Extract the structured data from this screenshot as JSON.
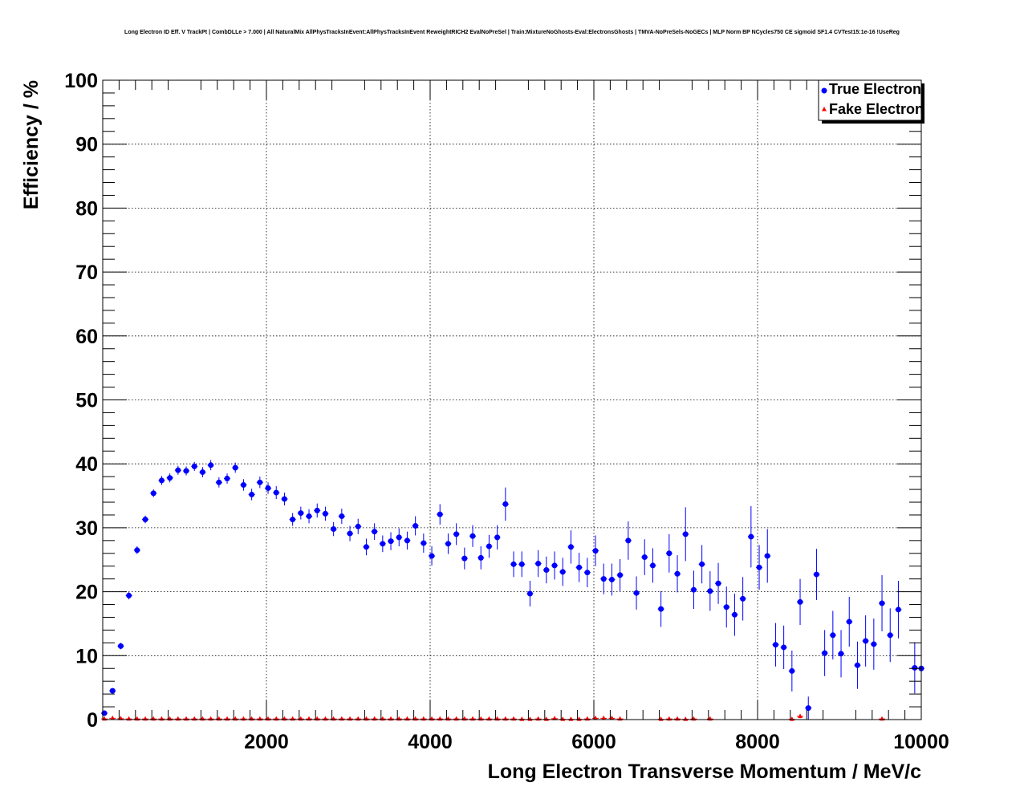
{
  "chart_data": {
    "type": "scatter",
    "title": "Long Electron ID Eff. V TrackPt | CombDLLe > 7.000 | All NaturalMix AllPhysTracksInEvent:AllPhysTracksInEvent ReweightRICH2 EvalNoPreSel | Train:MixtureNoGhosts-Eval:ElectronsGhosts | TMVA-NoPreSels-NoGECs | MLP Norm BP NCycles750 CE sigmoid SF1.4 CVTest15:1e-16 !UseReg",
    "xlabel": "Long Electron Transverse Momentum / MeV/c",
    "ylabel": "Efficiency / %",
    "xlim": [
      0,
      10000
    ],
    "ylim": [
      0,
      100
    ],
    "xticks": [
      "2000",
      "4000",
      "6000",
      "8000",
      "10000"
    ],
    "yticks": [
      "0",
      "10",
      "20",
      "30",
      "40",
      "50",
      "60",
      "70",
      "80",
      "90",
      "100"
    ],
    "grid": true,
    "legend": "top-right",
    "series": [
      {
        "name": "True Electron",
        "color": "#0000ff",
        "marker": "circle",
        "x": [
          20,
          120,
          220,
          320,
          420,
          520,
          620,
          720,
          820,
          920,
          1020,
          1120,
          1220,
          1320,
          1420,
          1520,
          1620,
          1720,
          1820,
          1920,
          2020,
          2120,
          2220,
          2320,
          2420,
          2520,
          2620,
          2720,
          2820,
          2920,
          3020,
          3120,
          3220,
          3320,
          3420,
          3520,
          3620,
          3720,
          3820,
          3920,
          4020,
          4120,
          4220,
          4320,
          4420,
          4520,
          4620,
          4720,
          4820,
          4920,
          5020,
          5120,
          5220,
          5320,
          5420,
          5520,
          5620,
          5720,
          5820,
          5920,
          6020,
          6120,
          6220,
          6320,
          6420,
          6520,
          6620,
          6720,
          6820,
          6920,
          7020,
          7120,
          7220,
          7320,
          7420,
          7520,
          7620,
          7720,
          7820,
          7920,
          8020,
          8120,
          8220,
          8320,
          8420,
          8520,
          8620,
          8720,
          8820,
          8920,
          9020,
          9120,
          9220,
          9320,
          9420,
          9520,
          9620,
          9720,
          9920,
          10000
        ],
        "y": [
          1.0,
          4.5,
          11.5,
          19.4,
          26.5,
          31.3,
          35.4,
          37.4,
          37.8,
          39.0,
          38.9,
          39.6,
          38.7,
          39.8,
          37.1,
          37.7,
          39.4,
          36.7,
          35.2,
          37.1,
          36.2,
          35.5,
          34.5,
          31.3,
          32.3,
          31.8,
          32.7,
          32.2,
          29.8,
          31.8,
          29.1,
          30.2,
          27.0,
          29.4,
          27.5,
          27.9,
          28.5,
          28.0,
          30.3,
          27.6,
          25.6,
          32.1,
          27.5,
          29.0,
          25.2,
          28.7,
          25.3,
          27.1,
          28.5,
          33.7,
          24.3,
          24.3,
          19.7,
          24.4,
          23.4,
          24.1,
          23.1,
          27.0,
          23.8,
          23.0,
          26.4,
          22.0,
          21.9,
          22.6,
          28.0,
          19.8,
          25.4,
          24.1,
          17.3,
          26.0,
          22.8,
          29.0,
          20.3,
          24.3,
          20.1,
          21.3,
          17.6,
          16.4,
          18.9,
          28.6,
          23.8,
          25.6,
          11.7,
          11.3,
          7.6,
          18.4,
          1.8,
          22.7,
          10.4,
          13.2,
          10.3,
          15.3,
          8.5,
          12.3,
          11.8,
          18.2,
          13.2,
          17.2,
          8.1,
          8.0
        ],
        "err": [
          0.3,
          0.4,
          0.5,
          0.6,
          0.6,
          0.6,
          0.6,
          0.7,
          0.7,
          0.7,
          0.7,
          0.7,
          0.8,
          0.8,
          0.8,
          0.8,
          0.8,
          0.9,
          0.9,
          0.9,
          0.9,
          1.0,
          1.0,
          1.0,
          1.0,
          1.1,
          1.1,
          1.1,
          1.1,
          1.2,
          1.2,
          1.2,
          1.3,
          1.3,
          1.3,
          1.4,
          1.4,
          1.4,
          1.5,
          1.5,
          1.5,
          1.6,
          1.6,
          1.7,
          1.7,
          1.7,
          1.8,
          1.8,
          1.9,
          2.6,
          2.0,
          2.0,
          2.0,
          2.1,
          2.1,
          2.2,
          2.2,
          2.6,
          2.3,
          2.3,
          2.4,
          2.4,
          2.5,
          2.5,
          3.0,
          2.6,
          2.8,
          2.7,
          2.8,
          3.0,
          2.9,
          4.2,
          3.0,
          3.0,
          3.1,
          3.2,
          3.2,
          3.3,
          3.4,
          4.8,
          3.5,
          4.2,
          3.4,
          3.4,
          3.2,
          3.6,
          1.8,
          4.0,
          3.6,
          3.8,
          3.7,
          3.9,
          3.7,
          4.0,
          4.0,
          4.4,
          4.2,
          4.5,
          4.0,
          4.0
        ]
      },
      {
        "name": "Fake Electron",
        "color": "#ff0000",
        "marker": "triangle",
        "x": [
          20,
          120,
          220,
          320,
          420,
          520,
          620,
          720,
          820,
          920,
          1020,
          1120,
          1220,
          1320,
          1420,
          1520,
          1620,
          1720,
          1820,
          1920,
          2020,
          2120,
          2220,
          2320,
          2420,
          2520,
          2620,
          2720,
          2820,
          2920,
          3020,
          3120,
          3220,
          3320,
          3420,
          3520,
          3620,
          3720,
          3820,
          3920,
          4020,
          4120,
          4220,
          4320,
          4420,
          4520,
          4620,
          4720,
          4820,
          4920,
          5020,
          5120,
          5220,
          5320,
          5420,
          5520,
          5620,
          5720,
          5820,
          5920,
          6020,
          6120,
          6220,
          6320,
          6820,
          6920,
          7020,
          7120,
          7220,
          7420,
          8420,
          8520,
          9520
        ],
        "y": [
          0.1,
          0.2,
          0.15,
          0.1,
          0.1,
          0.1,
          0.1,
          0.1,
          0.1,
          0.1,
          0.1,
          0.1,
          0.1,
          0.1,
          0.1,
          0.1,
          0.1,
          0.1,
          0.1,
          0.1,
          0.1,
          0.1,
          0.1,
          0.1,
          0.1,
          0.1,
          0.1,
          0.1,
          0.1,
          0.1,
          0.1,
          0.1,
          0.1,
          0.1,
          0.1,
          0.1,
          0.1,
          0.1,
          0.1,
          0.1,
          0.1,
          0.1,
          0.1,
          0.1,
          0.1,
          0.1,
          0.1,
          0.1,
          0.1,
          0.1,
          0.1,
          0.05,
          0.05,
          0.1,
          0.05,
          0.15,
          0.05,
          0.05,
          0.05,
          0.1,
          0.2,
          0.2,
          0.2,
          0.1,
          0.05,
          0.1,
          0.1,
          0.05,
          0.1,
          0.1,
          0.05,
          0.5,
          0.1
        ],
        "err": [
          0.05,
          0.1,
          0.1,
          0.05,
          0.05,
          0.05,
          0.05,
          0.05,
          0.05,
          0.05,
          0.05,
          0.05,
          0.05,
          0.05,
          0.05,
          0.05,
          0.05,
          0.05,
          0.05,
          0.05,
          0.05,
          0.05,
          0.05,
          0.05,
          0.05,
          0.05,
          0.05,
          0.05,
          0.05,
          0.05,
          0.05,
          0.05,
          0.05,
          0.05,
          0.05,
          0.05,
          0.05,
          0.05,
          0.05,
          0.05,
          0.05,
          0.05,
          0.05,
          0.05,
          0.05,
          0.05,
          0.05,
          0.05,
          0.05,
          0.05,
          0.05,
          0.05,
          0.05,
          0.05,
          0.05,
          0.1,
          0.05,
          0.05,
          0.05,
          0.1,
          0.15,
          0.15,
          0.15,
          0.1,
          0.05,
          0.1,
          0.1,
          0.05,
          0.1,
          0.1,
          0.05,
          0.3,
          0.1
        ]
      }
    ]
  }
}
